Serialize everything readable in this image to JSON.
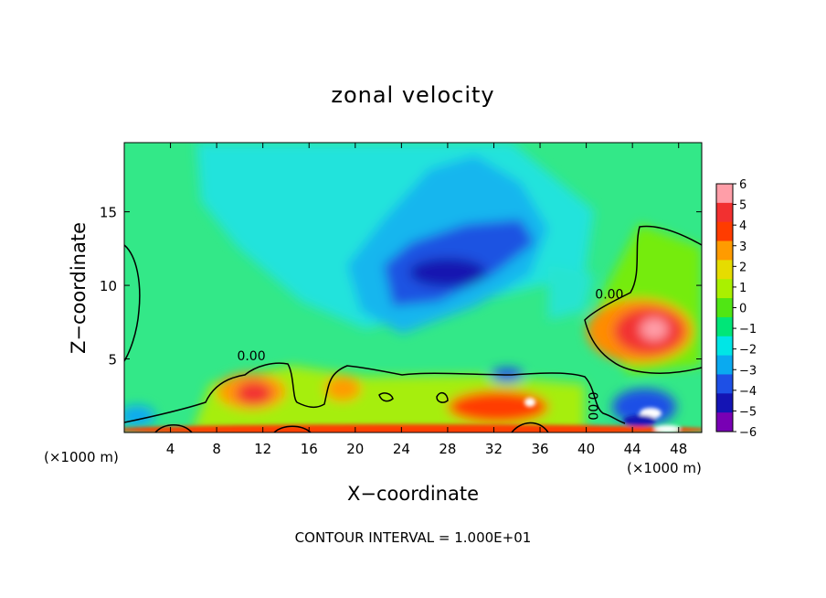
{
  "chart_data": {
    "type": "heatmap",
    "title": "zonal velocity",
    "xlabel": "X−coordinate",
    "ylabel": "Z−coordinate",
    "x_unit_left": "(×1000 m)",
    "x_unit_right": "(×1000 m)",
    "footer": "CONTOUR INTERVAL = 1.000E+01",
    "xlim": [
      0,
      50
    ],
    "ylim": [
      0,
      19.7
    ],
    "x_ticks": [
      4,
      8,
      12,
      16,
      20,
      24,
      28,
      32,
      36,
      40,
      44,
      48
    ],
    "x_tick_labels": [
      "4",
      "8",
      "12",
      "16",
      "20",
      "24",
      "28",
      "32",
      "36",
      "40",
      "44",
      "48"
    ],
    "y_ticks": [
      5,
      10,
      15
    ],
    "y_tick_labels": [
      "5",
      "10",
      "15"
    ],
    "colorbar": {
      "levels": [
        6,
        5,
        4,
        3,
        2,
        1,
        0,
        -1,
        -2,
        -3,
        -4,
        -5,
        -6
      ],
      "labels": [
        "6",
        "5",
        "4",
        "3",
        "2",
        "1",
        "0",
        "−1",
        "−2",
        "−3",
        "−4",
        "−5",
        "−6"
      ],
      "colors": [
        "#ff9ea8",
        "#f23030",
        "#ff3c00",
        "#ff9b00",
        "#e6dc00",
        "#aaf000",
        "#50e614",
        "#00e678",
        "#00e6e6",
        "#0aaaf0",
        "#1e50e6",
        "#1414b4",
        "#7800b4"
      ]
    },
    "contour_labels": [
      {
        "text": "0.00",
        "x": 11.0,
        "z": 4.9
      },
      {
        "text": "0.00",
        "x": 42.0,
        "z": 9.1
      },
      {
        "text": "0.00",
        "x": 40.2,
        "z": 1.8
      }
    ],
    "features": [
      {
        "kind": "min",
        "x": 28,
        "z": 11.5,
        "value": -5.5
      },
      {
        "kind": "max",
        "x": 46,
        "z": 7.0,
        "value": 5.0
      }
    ]
  }
}
